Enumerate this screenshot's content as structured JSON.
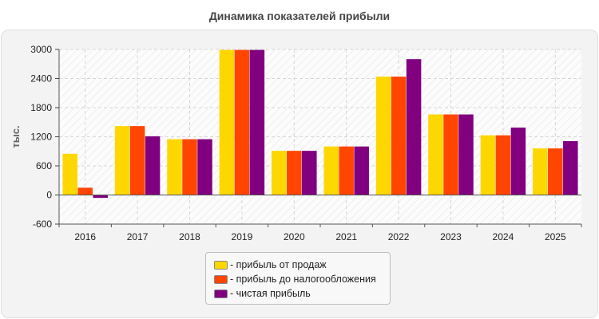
{
  "chart_data": {
    "type": "bar",
    "title": "Динамика показателей прибыли",
    "ylabel": "тыс.",
    "xlabel": "",
    "categories": [
      "2016",
      "2017",
      "2018",
      "2019",
      "2020",
      "2021",
      "2022",
      "2023",
      "2024",
      "2025"
    ],
    "ylim": [
      -600,
      3000
    ],
    "yticks": [
      -600,
      0,
      600,
      1200,
      1800,
      2400,
      3000
    ],
    "grid": true,
    "legend_position": "bottom",
    "series": [
      {
        "name": "- прибыль от продаж",
        "color": "#FFD700",
        "values": [
          850,
          1420,
          1150,
          2990,
          910,
          1000,
          2440,
          1660,
          1230,
          960
        ]
      },
      {
        "name": "- прибыль до налогообложения",
        "color": "#FF4500",
        "values": [
          150,
          1420,
          1150,
          2990,
          910,
          1000,
          2440,
          1660,
          1230,
          960
        ]
      },
      {
        "name": "- чистая прибыль",
        "color": "#800080",
        "values": [
          -60,
          1210,
          1150,
          2990,
          910,
          1000,
          2800,
          1660,
          1390,
          1110
        ]
      }
    ]
  }
}
